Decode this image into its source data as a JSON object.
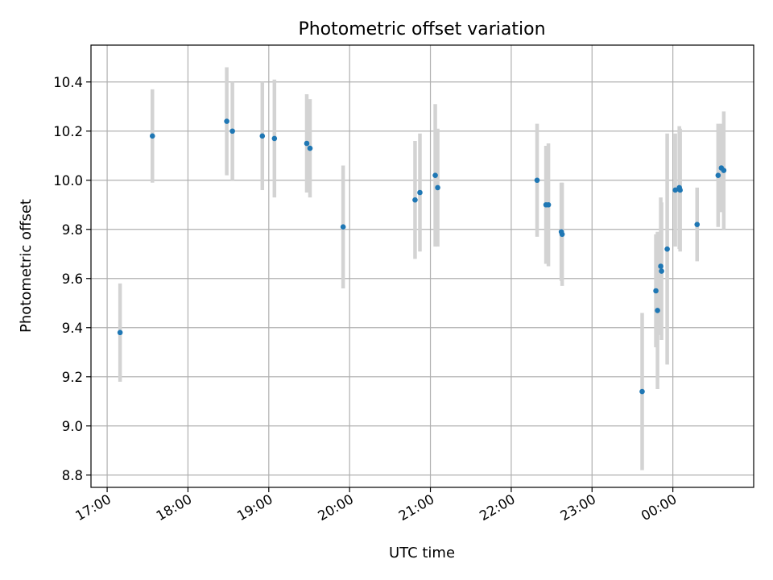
{
  "chart_data": {
    "type": "scatter",
    "title": "Photometric offset variation",
    "xlabel": "UTC time",
    "ylabel": "Photometric offset",
    "x_unit": "UTC time (h)",
    "xlim": [
      16.8,
      25.0
    ],
    "ylim": [
      8.75,
      10.55
    ],
    "x_ticks": [
      {
        "value": 17,
        "label": "17:00"
      },
      {
        "value": 18,
        "label": "18:00"
      },
      {
        "value": 19,
        "label": "19:00"
      },
      {
        "value": 20,
        "label": "20:00"
      },
      {
        "value": 21,
        "label": "21:00"
      },
      {
        "value": 22,
        "label": "22:00"
      },
      {
        "value": 23,
        "label": "23:00"
      },
      {
        "value": 24,
        "label": "00:00"
      }
    ],
    "y_ticks": [
      {
        "value": 8.8,
        "label": "8.8"
      },
      {
        "value": 9.0,
        "label": "9.0"
      },
      {
        "value": 9.2,
        "label": "9.2"
      },
      {
        "value": 9.4,
        "label": "9.4"
      },
      {
        "value": 9.6,
        "label": "9.6"
      },
      {
        "value": 9.8,
        "label": "9.8"
      },
      {
        "value": 10.0,
        "label": "10.0"
      },
      {
        "value": 10.2,
        "label": "10.2"
      },
      {
        "value": 10.4,
        "label": "10.4"
      }
    ],
    "grid": true,
    "colors": {
      "point": "#1f77b4",
      "errorbar": "#d3d3d3",
      "grid": "#b0b0b0"
    },
    "points": [
      {
        "x": 17.16,
        "y": 9.38,
        "err": 0.2
      },
      {
        "x": 17.56,
        "y": 10.18,
        "err": 0.19
      },
      {
        "x": 18.48,
        "y": 10.24,
        "err": 0.22
      },
      {
        "x": 18.55,
        "y": 10.2,
        "err": 0.2
      },
      {
        "x": 18.92,
        "y": 10.18,
        "err": 0.22
      },
      {
        "x": 19.07,
        "y": 10.17,
        "err": 0.24
      },
      {
        "x": 19.47,
        "y": 10.15,
        "err": 0.2
      },
      {
        "x": 19.51,
        "y": 10.13,
        "err": 0.2
      },
      {
        "x": 19.92,
        "y": 9.81,
        "err": 0.25
      },
      {
        "x": 20.81,
        "y": 9.92,
        "err": 0.24
      },
      {
        "x": 20.87,
        "y": 9.95,
        "err": 0.24
      },
      {
        "x": 21.06,
        "y": 10.02,
        "err": 0.29
      },
      {
        "x": 21.09,
        "y": 9.97,
        "err": 0.24
      },
      {
        "x": 22.32,
        "y": 10.0,
        "err": 0.23
      },
      {
        "x": 22.43,
        "y": 9.9,
        "err": 0.24
      },
      {
        "x": 22.46,
        "y": 9.9,
        "err": 0.25
      },
      {
        "x": 22.62,
        "y": 9.79,
        "err": 0.2
      },
      {
        "x": 22.63,
        "y": 9.78,
        "err": 0.21
      },
      {
        "x": 23.62,
        "y": 9.14,
        "err": 0.32
      },
      {
        "x": 23.79,
        "y": 9.55,
        "err": 0.23
      },
      {
        "x": 23.81,
        "y": 9.47,
        "err": 0.32
      },
      {
        "x": 23.85,
        "y": 9.65,
        "err": 0.28
      },
      {
        "x": 23.86,
        "y": 9.63,
        "err": 0.28
      },
      {
        "x": 23.93,
        "y": 9.72,
        "err": 0.47
      },
      {
        "x": 24.03,
        "y": 9.96,
        "err": 0.23
      },
      {
        "x": 24.08,
        "y": 9.97,
        "err": 0.25
      },
      {
        "x": 24.09,
        "y": 9.96,
        "err": 0.25
      },
      {
        "x": 24.3,
        "y": 9.82,
        "err": 0.15
      },
      {
        "x": 24.56,
        "y": 10.02,
        "err": 0.21
      },
      {
        "x": 24.6,
        "y": 10.05,
        "err": 0.18
      },
      {
        "x": 24.63,
        "y": 10.04,
        "err": 0.24
      }
    ]
  }
}
